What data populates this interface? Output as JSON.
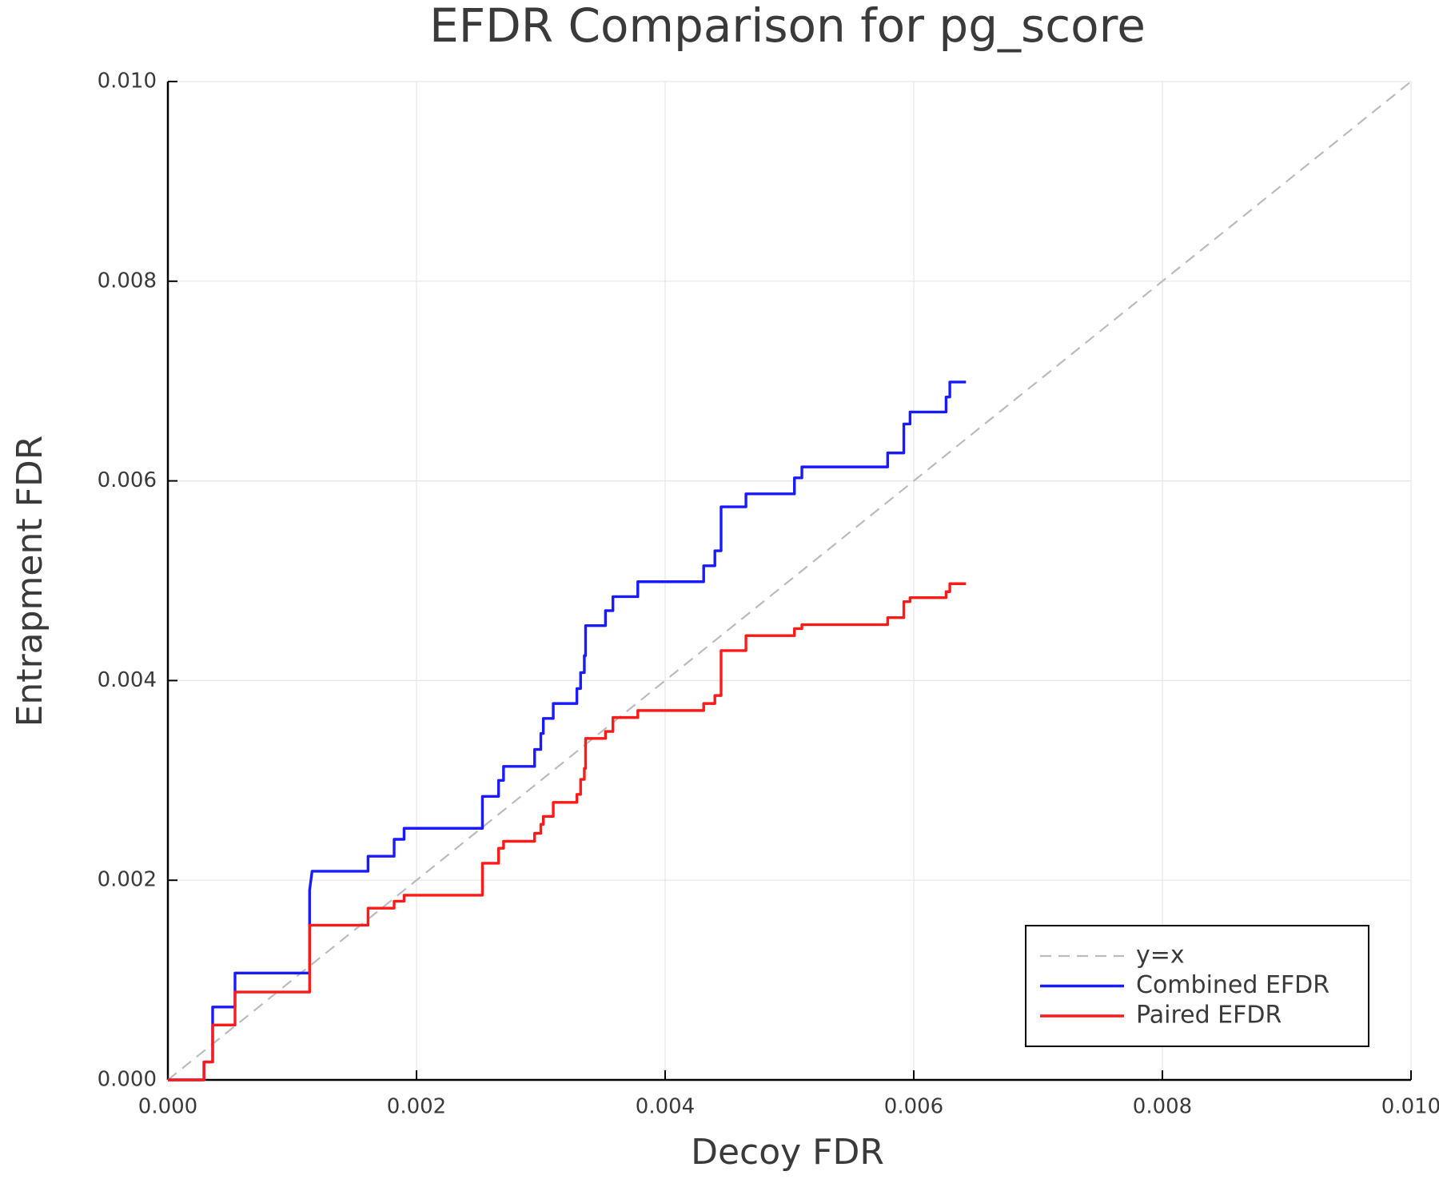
{
  "chart_data": {
    "type": "line",
    "title": "EFDR Comparison for pg_score",
    "xlabel": "Decoy FDR",
    "ylabel": "Entrapment FDR",
    "xlim": [
      0,
      0.01
    ],
    "ylim": [
      0,
      0.01
    ],
    "xticks": [
      {
        "value": 0,
        "label": "0.000"
      },
      {
        "value": 0.002,
        "label": "0.002"
      },
      {
        "value": 0.004,
        "label": "0.004"
      },
      {
        "value": 0.006,
        "label": "0.006"
      },
      {
        "value": 0.008,
        "label": "0.008"
      },
      {
        "value": 0.01,
        "label": "0.010"
      }
    ],
    "yticks": [
      {
        "value": 0,
        "label": "0.000"
      },
      {
        "value": 0.002,
        "label": "0.002"
      },
      {
        "value": 0.004,
        "label": "0.004"
      },
      {
        "value": 0.006,
        "label": "0.006"
      },
      {
        "value": 0.008,
        "label": "0.008"
      },
      {
        "value": 0.01,
        "label": "0.010"
      }
    ],
    "grid": true,
    "legend": "lower right",
    "series": [
      {
        "name": "y=x",
        "color": "#bbbbbb",
        "dash": true,
        "x": [
          0,
          0.01
        ],
        "y": [
          0,
          0.01
        ]
      },
      {
        "name": "Combined EFDR",
        "color": "#1a1aff",
        "x": [
          0,
          0.00029,
          0.00029,
          0.00036,
          0.00036,
          0.00054,
          0.00054,
          0.00114,
          0.00114,
          0.00116,
          0.00161,
          0.00161,
          0.00182,
          0.00182,
          0.0019,
          0.0019,
          0.00253,
          0.00253,
          0.00266,
          0.00266,
          0.0027,
          0.0027,
          0.00295,
          0.00295,
          0.003,
          0.003,
          0.00302,
          0.00302,
          0.0031,
          0.0031,
          0.00329,
          0.00329,
          0.00332,
          0.00332,
          0.00335,
          0.00335,
          0.00336,
          0.00336,
          0.00352,
          0.00352,
          0.00358,
          0.00358,
          0.00378,
          0.00378,
          0.00431,
          0.00431,
          0.0044,
          0.0044,
          0.00445,
          0.00445,
          0.00465,
          0.00465,
          0.00504,
          0.00504,
          0.0051,
          0.0051,
          0.00579,
          0.00579,
          0.00592,
          0.00592,
          0.00597,
          0.00597,
          0.00626,
          0.00626,
          0.00629,
          0.00629,
          0.00642
        ],
        "y": [
          0,
          0,
          0.00018,
          0.00018,
          0.00073,
          0.00073,
          0.00107,
          0.00107,
          0.0019,
          0.00209,
          0.00209,
          0.00224,
          0.00224,
          0.00241,
          0.00241,
          0.00252,
          0.00252,
          0.00284,
          0.00284,
          0.003,
          0.003,
          0.00314,
          0.00314,
          0.00331,
          0.00331,
          0.00347,
          0.00347,
          0.00362,
          0.00362,
          0.00377,
          0.00377,
          0.00392,
          0.00392,
          0.00408,
          0.00408,
          0.00425,
          0.00425,
          0.00455,
          0.00455,
          0.0047,
          0.0047,
          0.00484,
          0.00484,
          0.00499,
          0.00499,
          0.00515,
          0.00515,
          0.0053,
          0.0053,
          0.00574,
          0.00574,
          0.00587,
          0.00587,
          0.00603,
          0.00603,
          0.00614,
          0.00614,
          0.00628,
          0.00628,
          0.00657,
          0.00657,
          0.00669,
          0.00669,
          0.00684,
          0.00684,
          0.00699,
          0.00699
        ]
      },
      {
        "name": "Paired EFDR",
        "color": "#ff1a1a",
        "x": [
          0,
          0.00029,
          0.00029,
          0.00036,
          0.00036,
          0.00054,
          0.00054,
          0.00114,
          0.00114,
          0.00161,
          0.00161,
          0.00182,
          0.00182,
          0.0019,
          0.0019,
          0.00253,
          0.00253,
          0.00266,
          0.00266,
          0.0027,
          0.0027,
          0.00295,
          0.00295,
          0.003,
          0.003,
          0.00302,
          0.00302,
          0.0031,
          0.0031,
          0.00329,
          0.00329,
          0.00332,
          0.00332,
          0.00335,
          0.00335,
          0.00336,
          0.00336,
          0.00352,
          0.00352,
          0.00358,
          0.00358,
          0.00378,
          0.00378,
          0.00431,
          0.00431,
          0.0044,
          0.0044,
          0.00445,
          0.00445,
          0.00465,
          0.00465,
          0.00504,
          0.00504,
          0.0051,
          0.0051,
          0.00579,
          0.00579,
          0.00592,
          0.00592,
          0.00597,
          0.00597,
          0.00626,
          0.00626,
          0.00629,
          0.00629,
          0.00642
        ],
        "y": [
          0,
          0,
          0.00018,
          0.00018,
          0.00055,
          0.00055,
          0.00088,
          0.00088,
          0.00155,
          0.00155,
          0.00172,
          0.00172,
          0.00179,
          0.00179,
          0.00185,
          0.00185,
          0.00217,
          0.00217,
          0.00232,
          0.00232,
          0.00239,
          0.00239,
          0.00247,
          0.00247,
          0.00256,
          0.00256,
          0.00264,
          0.00264,
          0.00278,
          0.00278,
          0.00286,
          0.00286,
          0.00301,
          0.00301,
          0.00312,
          0.00312,
          0.00342,
          0.00342,
          0.00349,
          0.00349,
          0.00363,
          0.00363,
          0.0037,
          0.0037,
          0.00377,
          0.00377,
          0.00385,
          0.00385,
          0.0043,
          0.0043,
          0.00445,
          0.00445,
          0.00452,
          0.00452,
          0.00456,
          0.00456,
          0.00463,
          0.00463,
          0.00479,
          0.00479,
          0.00483,
          0.00483,
          0.00489,
          0.00489,
          0.00497,
          0.00497
        ]
      }
    ]
  }
}
